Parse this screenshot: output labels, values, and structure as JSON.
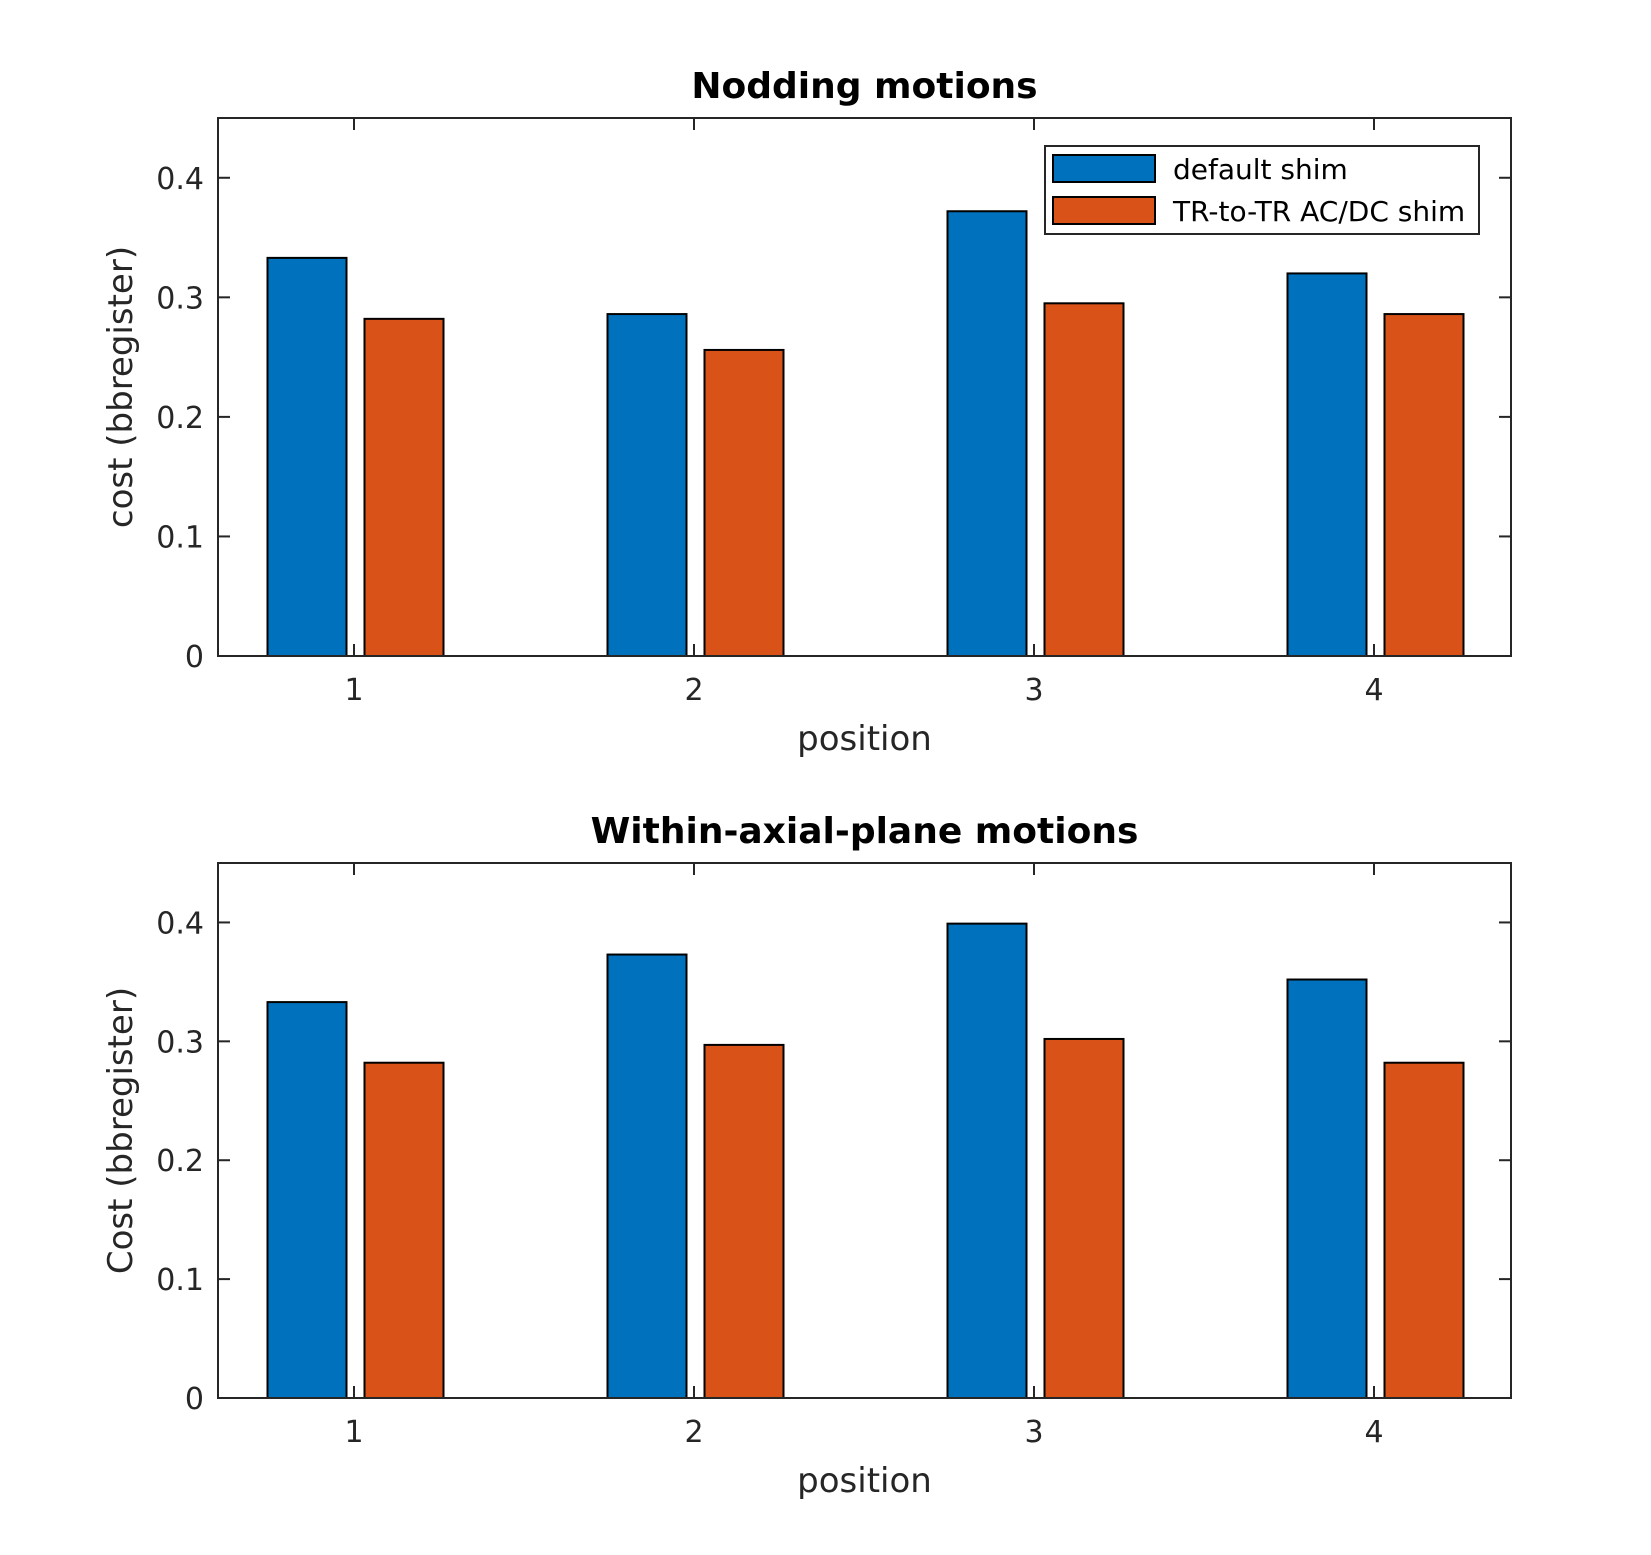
{
  "chart_data": [
    {
      "type": "bar",
      "title": "Nodding motions",
      "xlabel": "position",
      "ylabel": "cost (bbregister)",
      "categories": [
        "1",
        "2",
        "3",
        "4"
      ],
      "ylim": [
        0,
        0.45
      ],
      "yticks": [
        "0",
        "0.1",
        "0.2",
        "0.3",
        "0.4"
      ],
      "ytick_values": [
        0,
        0.1,
        0.2,
        0.3,
        0.4
      ],
      "series": [
        {
          "name": " default shim",
          "color": "#0072BD",
          "values": [
            0.333,
            0.286,
            0.372,
            0.32
          ]
        },
        {
          "name": "TR-to-TR AC/DC shim",
          "color": "#D95319",
          "values": [
            0.282,
            0.256,
            0.295,
            0.286
          ]
        }
      ],
      "legend": "top-right",
      "grid": false
    },
    {
      "type": "bar",
      "title": "Within-axial-plane motions",
      "xlabel": "position",
      "ylabel": "Cost (bbregister)",
      "categories": [
        "1",
        "2",
        "3",
        "4"
      ],
      "ylim": [
        0,
        0.45
      ],
      "yticks": [
        "0",
        "0.1",
        "0.2",
        "0.3",
        "0.4"
      ],
      "ytick_values": [
        0,
        0.1,
        0.2,
        0.3,
        0.4
      ],
      "series": [
        {
          "name": " default shim",
          "color": "#0072BD",
          "values": [
            0.333,
            0.373,
            0.399,
            0.352
          ]
        },
        {
          "name": "TR-to-TR AC/DC shim",
          "color": "#D95319",
          "values": [
            0.282,
            0.297,
            0.302,
            0.282
          ]
        }
      ],
      "legend": "none",
      "grid": false
    }
  ]
}
